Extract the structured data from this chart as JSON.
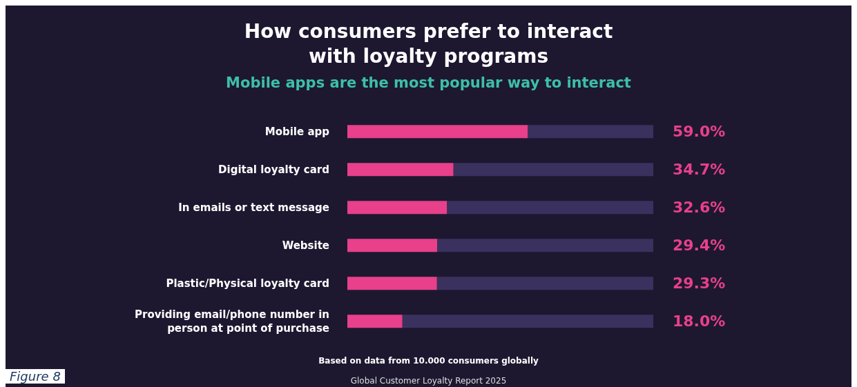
{
  "chart_data": {
    "type": "bar",
    "orientation": "horizontal",
    "stacked": true,
    "title": "How consumers prefer to interact\nwith loyalty programs",
    "subtitle": "Mobile apps are the most popular way to interact",
    "categories": [
      "Mobile app",
      "Digital loyalty card",
      "In emails or text message",
      "Website",
      "Plastic/Physical loyalty card",
      "Providing email/phone number in person at point of purchase"
    ],
    "series": [
      {
        "color": "#e8408a",
        "values": [
          59.0,
          34.7,
          32.6,
          29.4,
          29.3,
          18.0
        ],
        "value_labels": [
          "59.0%",
          "34.7%",
          "32.6%",
          "29.4%",
          "29.3%",
          "18.0%"
        ]
      },
      {
        "color": "#3b315e",
        "values": [
          41.0,
          65.3,
          67.4,
          70.6,
          70.7,
          82.0
        ]
      }
    ],
    "xlim": [
      0,
      100
    ],
    "tick_labels": "y",
    "grid": false,
    "legend": false,
    "annotations": [
      "Based on data from 10.000 consumers globally",
      "Global Customer Loyalty Report 2025",
      "Figure 8"
    ]
  }
}
